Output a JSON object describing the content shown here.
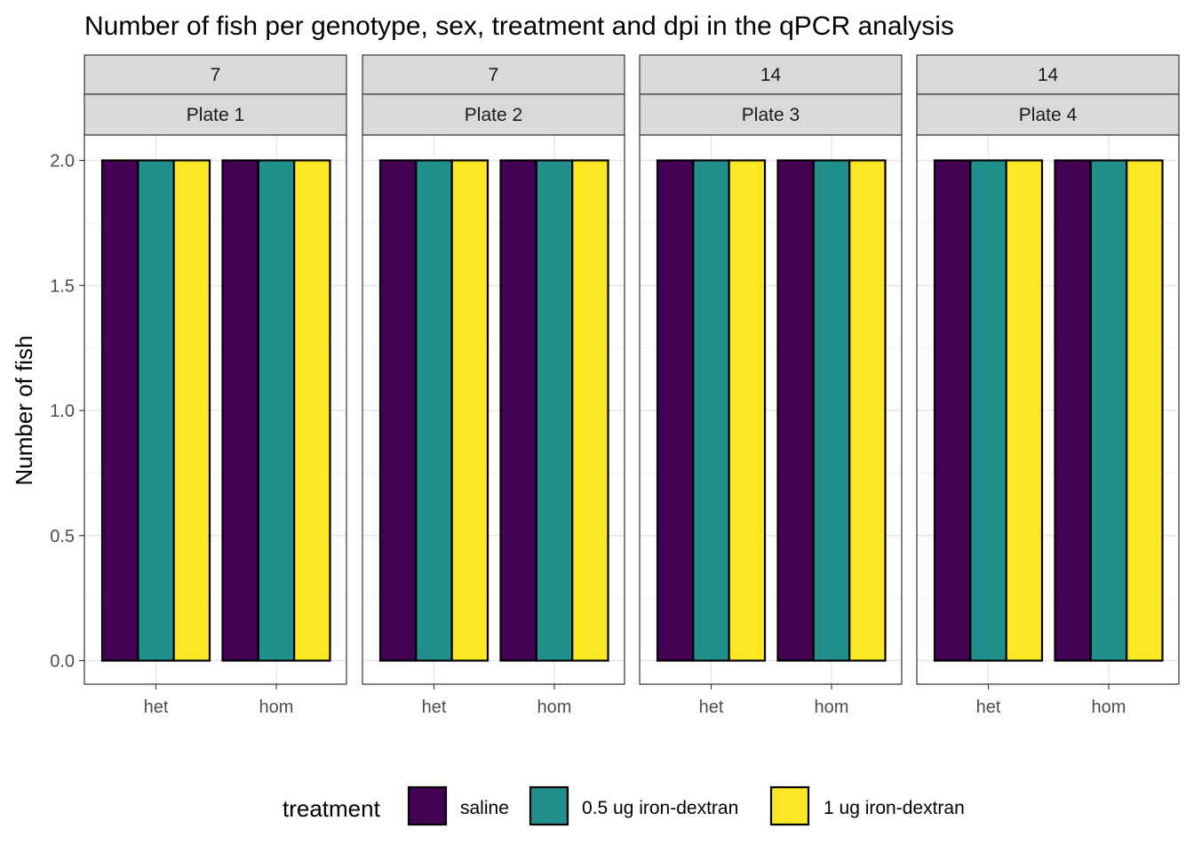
{
  "chart_data": {
    "type": "bar",
    "title": "Number of fish per genotype, sex, treatment and dpi in the qPCR analysis",
    "xlabel": "",
    "ylabel": "Number of fish",
    "ylim": [
      0,
      2.0
    ],
    "yticks": [
      "0.0",
      "0.5",
      "1.0",
      "1.5",
      "2.0"
    ],
    "yticks_values": [
      0,
      0.5,
      1.0,
      1.5,
      2.0
    ],
    "grid": true,
    "legend": {
      "title": "treatment",
      "placement": "bottom"
    },
    "categories": [
      "het",
      "hom"
    ],
    "series": [
      {
        "name": "saline",
        "color": "#440154"
      },
      {
        "name": "0.5 ug iron-dextran",
        "color": "#21908C"
      },
      {
        "name": "1 ug iron-dextran",
        "color": "#FDE725"
      }
    ],
    "panels": [
      {
        "dpi": "7",
        "plate": "Plate 1",
        "values": {
          "het": [
            2,
            2,
            2
          ],
          "hom": [
            2,
            2,
            2
          ]
        }
      },
      {
        "dpi": "7",
        "plate": "Plate 2",
        "values": {
          "het": [
            2,
            2,
            2
          ],
          "hom": [
            2,
            2,
            2
          ]
        }
      },
      {
        "dpi": "14",
        "plate": "Plate 3",
        "values": {
          "het": [
            2,
            2,
            2
          ],
          "hom": [
            2,
            2,
            2
          ]
        }
      },
      {
        "dpi": "14",
        "plate": "Plate 4",
        "values": {
          "het": [
            2,
            2,
            2
          ],
          "hom": [
            2,
            2,
            2
          ]
        }
      }
    ]
  }
}
